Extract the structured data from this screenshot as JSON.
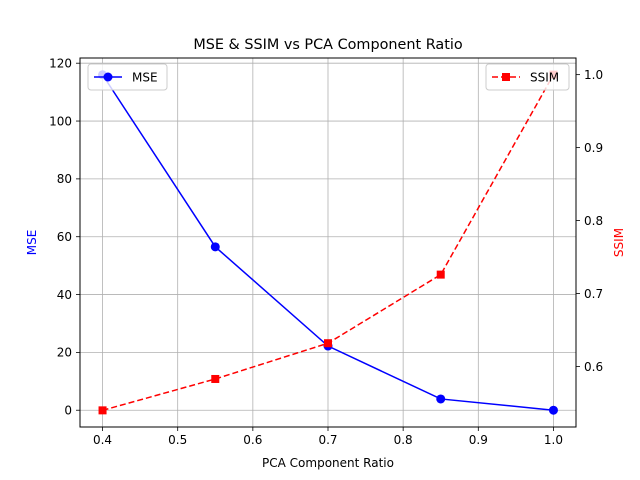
{
  "chart_data": {
    "type": "line",
    "title": "MSE & SSIM vs PCA Component Ratio",
    "xlabel": "PCA Component Ratio",
    "ylabel_left": "MSE",
    "ylabel_right": "SSIM",
    "xlim": [
      0.37,
      1.03
    ],
    "ylim_left": [
      -5.8,
      121.8
    ],
    "ylim_right": [
      0.5172,
      1.0228
    ],
    "x_ticks": [
      "0.4",
      "0.5",
      "0.6",
      "0.7",
      "0.8",
      "0.9",
      "1.0"
    ],
    "x_tick_values": [
      0.4,
      0.5,
      0.6,
      0.7,
      0.8,
      0.9,
      1.0
    ],
    "y_left_ticks": [
      "0",
      "20",
      "40",
      "60",
      "80",
      "100",
      "120"
    ],
    "y_left_tick_values": [
      0,
      20,
      40,
      60,
      80,
      100,
      120
    ],
    "y_right_ticks": [
      "0.6",
      "0.7",
      "0.8",
      "0.9",
      "1.0"
    ],
    "y_right_tick_values": [
      0.6,
      0.7,
      0.8,
      0.9,
      1.0
    ],
    "grid": true,
    "x": [
      0.4,
      0.55,
      0.7,
      0.85,
      1.0
    ],
    "series": [
      {
        "name": "MSE",
        "axis": "left",
        "color": "#0000ff",
        "line_style": "solid",
        "marker": "circle",
        "values": [
          116,
          56.5,
          22.2,
          3.9,
          0.0
        ],
        "legend_position": "top-left"
      },
      {
        "name": "SSIM",
        "axis": "right",
        "color": "#ff0000",
        "line_style": "dashed",
        "marker": "square",
        "values": [
          0.54,
          0.583,
          0.632,
          0.726,
          1.0
        ],
        "legend_position": "top-right"
      }
    ],
    "label_colors": {
      "left": "#0000ff",
      "right": "#ff0000"
    }
  }
}
